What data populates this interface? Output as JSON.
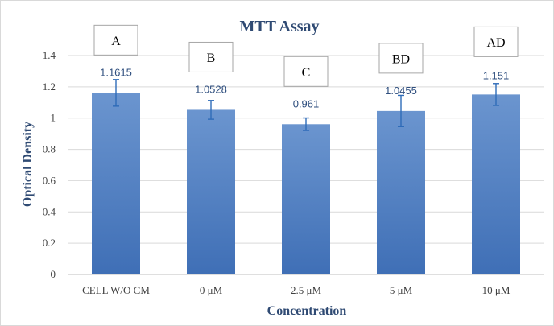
{
  "chart_data": {
    "type": "bar",
    "title": "MTT Assay",
    "xlabel": "Concentration",
    "ylabel": "Optical Density",
    "ylim": [
      0,
      1.4
    ],
    "yticks": [
      "0",
      "0.2",
      "0.4",
      "0.6",
      "0.8",
      "1",
      "1.2",
      "1.4"
    ],
    "grid": true,
    "categories": [
      "CELL  W/O CM",
      "0 μM",
      "2.5 μM",
      "5 μM",
      "10 μM"
    ],
    "values": [
      1.1615,
      1.0528,
      0.961,
      1.0455,
      1.151
    ],
    "data_labels": [
      "1.1615",
      "1.0528",
      "0.961",
      "1.0455",
      "1.151"
    ],
    "error": [
      0.085,
      0.06,
      0.04,
      0.1,
      0.07
    ],
    "group_letters": [
      "A",
      "B",
      "C",
      "BD",
      "AD"
    ],
    "colors": {
      "bar_top": "#6b95cf",
      "bar_bottom": "#3f6fb6",
      "error": "#2e6bb8"
    }
  }
}
